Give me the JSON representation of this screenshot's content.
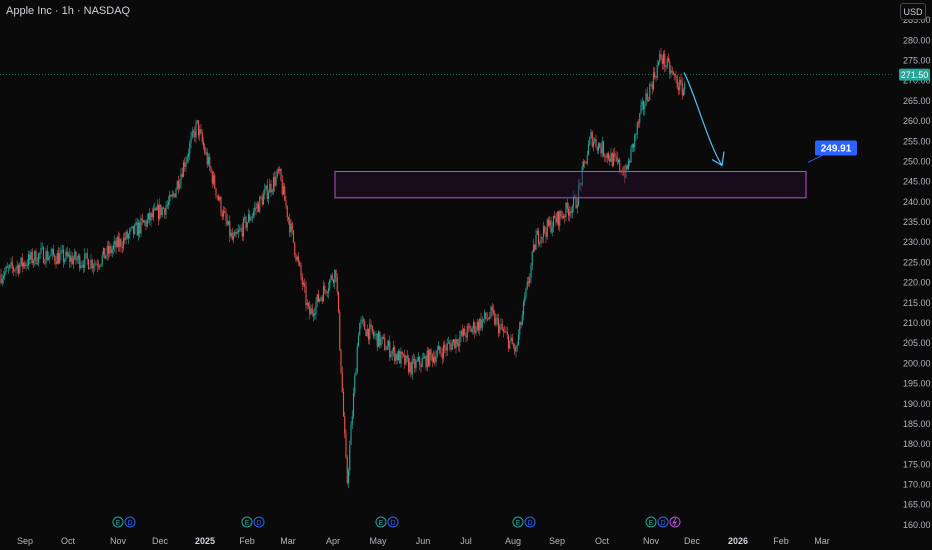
{
  "header": {
    "title": "Apple Inc · 1h · NASDAQ",
    "currency": "USD"
  },
  "price_axis": {
    "ticks": [
      "160.00",
      "165.00",
      "170.00",
      "175.00",
      "180.00",
      "185.00",
      "190.00",
      "195.00",
      "200.00",
      "205.00",
      "210.00",
      "215.00",
      "220.00",
      "225.00",
      "230.00",
      "235.00",
      "240.00",
      "245.00",
      "250.00",
      "255.00",
      "260.00",
      "265.00",
      "270.00",
      "275.00",
      "280.00",
      "285.00"
    ],
    "current_price_label": "271.50"
  },
  "time_axis": {
    "labels": [
      {
        "text": "Sep",
        "bold": false
      },
      {
        "text": "Oct",
        "bold": false
      },
      {
        "text": "Nov",
        "bold": false
      },
      {
        "text": "Dec",
        "bold": false
      },
      {
        "text": "2025",
        "bold": true
      },
      {
        "text": "Feb",
        "bold": false
      },
      {
        "text": "Mar",
        "bold": false
      },
      {
        "text": "Apr",
        "bold": false
      },
      {
        "text": "May",
        "bold": false
      },
      {
        "text": "Jun",
        "bold": false
      },
      {
        "text": "Jul",
        "bold": false
      },
      {
        "text": "Aug",
        "bold": false
      },
      {
        "text": "Sep",
        "bold": false
      },
      {
        "text": "Oct",
        "bold": false
      },
      {
        "text": "Nov",
        "bold": false
      },
      {
        "text": "Dec",
        "bold": false
      },
      {
        "text": "2026",
        "bold": true
      },
      {
        "text": "Feb",
        "bold": false
      },
      {
        "text": "Mar",
        "bold": false
      }
    ]
  },
  "event_markers": [
    {
      "month": "Nov",
      "items": [
        "E",
        "D"
      ]
    },
    {
      "month": "Feb",
      "items": [
        "E",
        "D"
      ]
    },
    {
      "month": "May",
      "items": [
        "E",
        "D"
      ]
    },
    {
      "month": "Aug",
      "items": [
        "E",
        "D"
      ]
    },
    {
      "month": "Nov",
      "items": [
        "E",
        "D",
        "split"
      ]
    }
  ],
  "colors": {
    "background": "#0a0a0a",
    "up": "#26a69a",
    "down": "#ef5350",
    "zone_border": "#b84fd6",
    "zone_fill": "#2a0f33",
    "arrow": "#4fc3f7",
    "target_label": "#2962ff",
    "price_line": "#26a69a"
  },
  "chart_data": {
    "type": "candlestick",
    "symbol": "Apple Inc",
    "interval": "1h",
    "exchange": "NASDAQ",
    "ylim": [
      157.5,
      287.5
    ],
    "current_price": 271.5,
    "approx_path": [
      {
        "x": "Sep 2024",
        "y": 222
      },
      {
        "x": "Oct 2024",
        "y": 227
      },
      {
        "x": "Nov 2024",
        "y": 225
      },
      {
        "x": "Dec 2024",
        "y": 240
      },
      {
        "x": "Dec 2024",
        "y": 259
      },
      {
        "x": "Jan 2025",
        "y": 237
      },
      {
        "x": "Feb 2025",
        "y": 230
      },
      {
        "x": "Feb 2025",
        "y": 247
      },
      {
        "x": "Mar 2025",
        "y": 212
      },
      {
        "x": "Apr 2025",
        "y": 223
      },
      {
        "x": "Apr 2025",
        "y": 170
      },
      {
        "x": "Apr 2025",
        "y": 210
      },
      {
        "x": "May 2025",
        "y": 199
      },
      {
        "x": "Jun 2025",
        "y": 203
      },
      {
        "x": "Jul 2025",
        "y": 212
      },
      {
        "x": "Aug 2025",
        "y": 203
      },
      {
        "x": "Aug 2025",
        "y": 231
      },
      {
        "x": "Sep 2025",
        "y": 240
      },
      {
        "x": "Sep 2025",
        "y": 256
      },
      {
        "x": "Oct 2025",
        "y": 247
      },
      {
        "x": "Oct 2025",
        "y": 262
      },
      {
        "x": "Nov 2025",
        "y": 276
      },
      {
        "x": "Nov 2025",
        "y": 268
      }
    ],
    "zone": {
      "low": 241,
      "high": 247.5
    },
    "projection": {
      "from": 272,
      "to": 249,
      "target_label": "249.91"
    },
    "grid": false
  }
}
